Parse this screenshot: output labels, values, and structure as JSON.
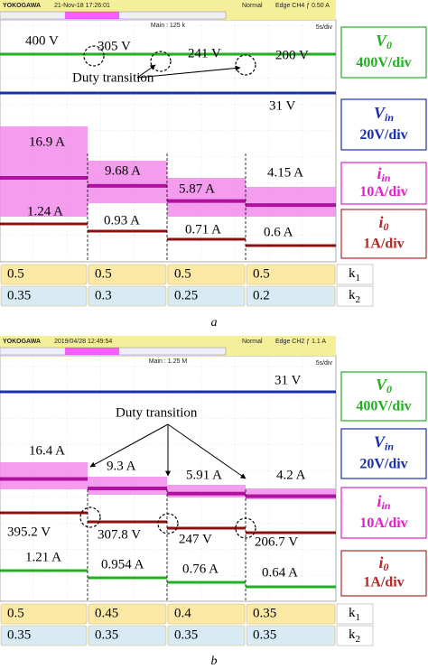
{
  "panels": [
    {
      "caption": "a",
      "header": {
        "brand": "YOKOGAWA",
        "timestamp": "21-Nov-18 17:26:01",
        "mode": "Normal",
        "trigger": "Edge CH4 ƒ 0.50 A",
        "timebase": "5s/div",
        "main": "Main : 125 k"
      },
      "annotations": {
        "v0": [
          "400 V",
          "305 V",
          "241 V",
          "200 V"
        ],
        "vin": "31 V",
        "iin": [
          "16.9 A",
          "9.68 A",
          "5.87 A",
          "4.15 A"
        ],
        "i0": [
          "1.24 A",
          "0.93 A",
          "0.71 A",
          "0.6 A"
        ],
        "duty": "Duty transition"
      },
      "scales": [
        {
          "symbol": "V",
          "sub": "0",
          "label": "400V/div"
        },
        {
          "symbol": "V",
          "sub": "in",
          "label": "20V/div"
        },
        {
          "symbol": "i",
          "sub": "in",
          "label": "10A/div"
        },
        {
          "symbol": "i",
          "sub": "0",
          "label": "1A/div"
        }
      ],
      "table": {
        "rows": [
          {
            "symbol": "k",
            "sub": "1",
            "cells": [
              "0.5",
              "0.5",
              "0.5",
              "0.5"
            ]
          },
          {
            "symbol": "k",
            "sub": "2",
            "cells": [
              "0.35",
              "0.3",
              "0.25",
              "0.2"
            ]
          }
        ]
      }
    },
    {
      "caption": "b",
      "header": {
        "brand": "YOKOGAWA",
        "timestamp": "2019/04/28 12:49:54",
        "mode": "Normal",
        "trigger": "Edge CH2 ƒ 1.1 A",
        "timebase": "5s/div",
        "main": "Main : 1.25 M"
      },
      "annotations": {
        "v0": [
          "395.2 V",
          "307.8 V",
          "247 V",
          "206.7 V"
        ],
        "vin": "31 V",
        "iin": [
          "16.4 A",
          "9.3 A",
          "5.91 A",
          "4.2 A"
        ],
        "i0": [
          "1.21 A",
          "0.954 A",
          "0.76 A",
          "0.64 A"
        ],
        "duty": "Duty transition"
      },
      "scales": [
        {
          "symbol": "V",
          "sub": "0",
          "label": "400V/div"
        },
        {
          "symbol": "V",
          "sub": "in",
          "label": "20V/div"
        },
        {
          "symbol": "i",
          "sub": "in",
          "label": "10A/div"
        },
        {
          "symbol": "i",
          "sub": "0",
          "label": "1A/div"
        }
      ],
      "table": {
        "rows": [
          {
            "symbol": "k",
            "sub": "1",
            "cells": [
              "0.5",
              "0.45",
              "0.4",
              "0.35"
            ]
          },
          {
            "symbol": "k",
            "sub": "2",
            "cells": [
              "0.35",
              "0.35",
              "0.35",
              "0.35"
            ]
          }
        ]
      }
    }
  ]
}
